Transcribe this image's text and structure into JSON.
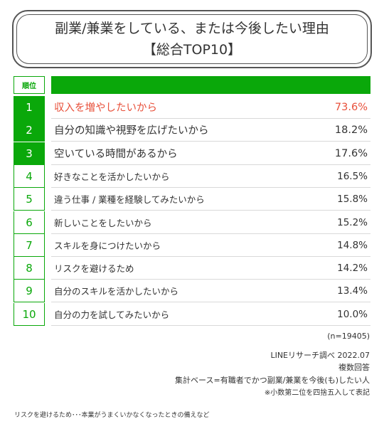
{
  "title": {
    "line1": "副業/兼業をしている、または今後したい理由",
    "line2": "【総合TOP10】"
  },
  "table_header": {
    "rank_label": "順位"
  },
  "colors": {
    "accent_green": "#0aa80a",
    "highlight_red": "#e8503a",
    "border_gray": "#555555"
  },
  "chart_data": {
    "type": "table",
    "title": "副業/兼業をしている、または今後したい理由【総合TOP10】",
    "columns": [
      "順位",
      "",
      ""
    ],
    "rows": [
      {
        "rank": "1",
        "label": "収入を増やしたいから",
        "value": "73.6%"
      },
      {
        "rank": "2",
        "label": "自分の知識や視野を広げたいから",
        "value": "18.2%"
      },
      {
        "rank": "3",
        "label": "空いている時間があるから",
        "value": "17.6%"
      },
      {
        "rank": "4",
        "label": "好きなことを活かしたいから",
        "value": "16.5%"
      },
      {
        "rank": "5",
        "label": "違う仕事 / 業種を経験してみたいから",
        "value": "15.8%"
      },
      {
        "rank": "6",
        "label": "新しいことをしたいから",
        "value": "15.2%"
      },
      {
        "rank": "7",
        "label": "スキルを身につけたいから",
        "value": "14.8%"
      },
      {
        "rank": "8",
        "label": "リスクを避けるため",
        "value": "14.2%"
      },
      {
        "rank": "9",
        "label": "自分のスキルを活かしたいから",
        "value": "13.4%"
      },
      {
        "rank": "10",
        "label": "自分の力を試してみたいから",
        "value": "10.0%"
      }
    ]
  },
  "notes": {
    "sample_size": "(n=19405)",
    "source": "LINEリサーチ調べ 2022.07",
    "method": "複数回答",
    "base": "集計ベース=有職者でかつ副業/兼業を今後(も)したい人",
    "rounding": "※小数第二位を四捨五入して表記"
  },
  "footnote": "リスクを避けるため･･･本業がうまくいかなくなったときの備えなど"
}
